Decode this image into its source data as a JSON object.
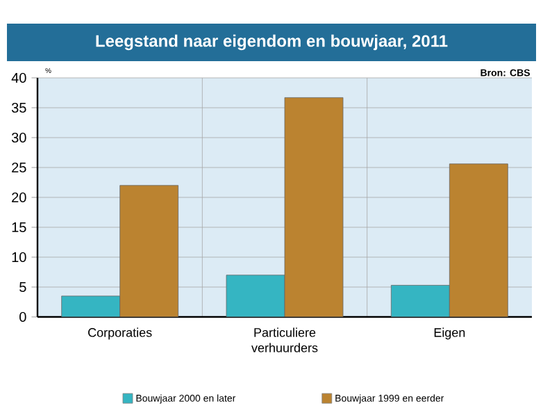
{
  "chart_data": {
    "type": "bar",
    "title": "Leegstand naar eigendom en bouwjaar, 2011",
    "ylabel": "%",
    "annotations": [
      "Bron: CBS"
    ],
    "categories": [
      "Corporaties",
      "Particuliere verhuurders",
      "Eigen"
    ],
    "series": [
      {
        "name": "Bouwjaar 2000 en later",
        "color": "#35b5c2",
        "values": [
          3.5,
          7.0,
          5.3
        ]
      },
      {
        "name": "Bouwjaar 1999 en eerder",
        "color": "#bb8330",
        "values": [
          22.0,
          36.7,
          25.6
        ]
      }
    ],
    "ylim": [
      0,
      40
    ],
    "yticks": [
      0,
      5,
      10,
      15,
      20,
      25,
      30,
      35,
      40
    ],
    "grid": "y",
    "legend": "bottom"
  }
}
